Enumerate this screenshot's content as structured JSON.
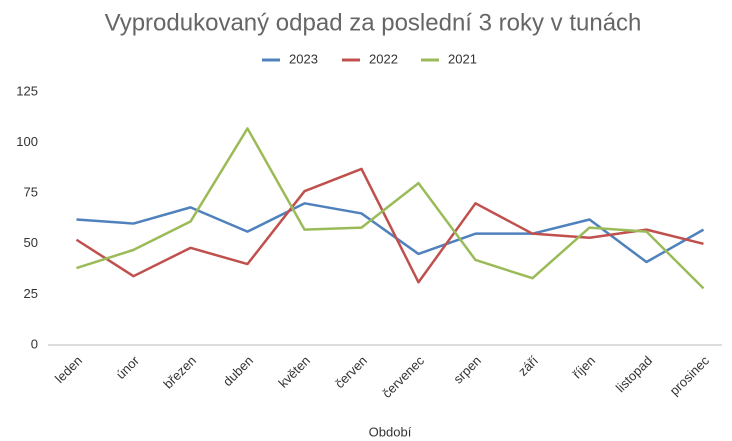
{
  "chart_data": {
    "type": "line",
    "title": "Vyprodukovaný odpad za poslední 3 roky v tunách",
    "x_label": "Období",
    "categories": [
      "leden",
      "únor",
      "březen",
      "duben",
      "květen",
      "červen",
      "červenec",
      "srpen",
      "září",
      "říjen",
      "listopad",
      "prosinec"
    ],
    "series": [
      {
        "name": "2023",
        "color": "#4f81bd",
        "values": [
          62,
          60,
          68,
          56,
          70,
          65,
          45,
          55,
          55,
          62,
          41,
          57
        ]
      },
      {
        "name": "2022",
        "color": "#c0504d",
        "values": [
          52,
          34,
          48,
          40,
          76,
          87,
          31,
          70,
          55,
          53,
          57,
          50
        ]
      },
      {
        "name": "2021",
        "color": "#9bbb59",
        "values": [
          38,
          47,
          61,
          107,
          57,
          58,
          80,
          42,
          33,
          58,
          56,
          28
        ]
      }
    ],
    "ylim": [
      0,
      125
    ],
    "yticks": [
      0,
      25,
      50,
      75,
      100,
      125
    ],
    "grid": false,
    "legend": "top"
  }
}
